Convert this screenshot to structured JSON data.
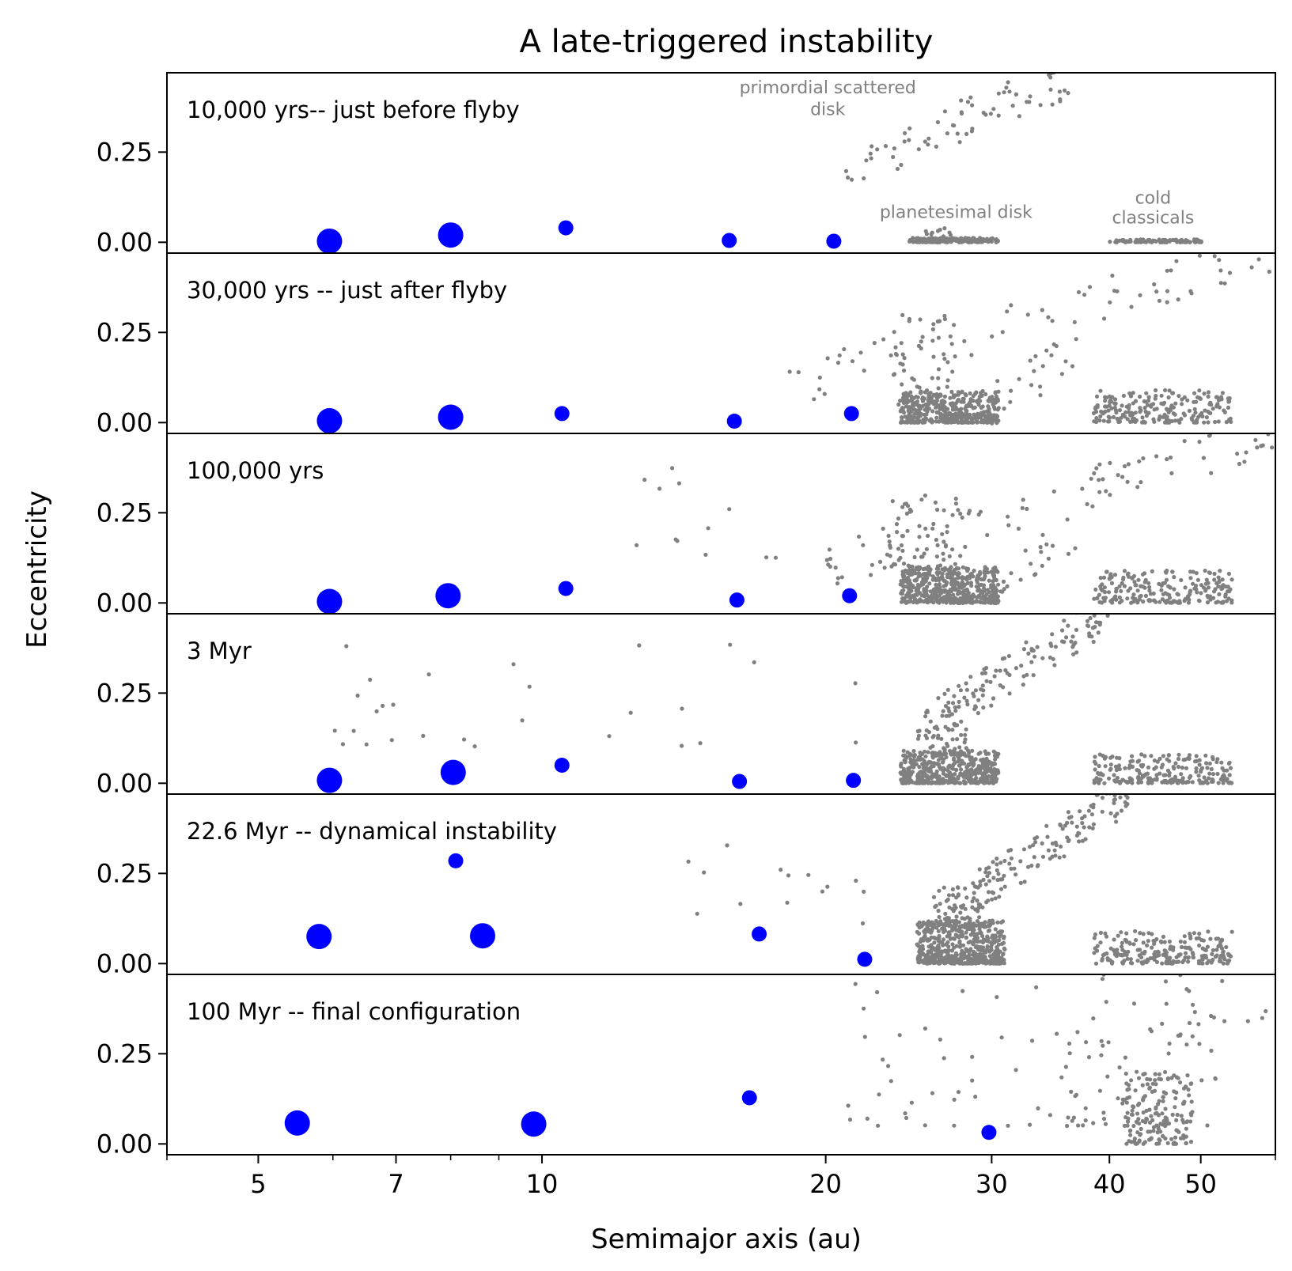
{
  "chart_data": {
    "type": "scatter",
    "title": "A late-triggered instability",
    "xlabel": "Semimajor axis (au)",
    "ylabel": "Eccentricity",
    "xscale": "log",
    "xlim": [
      4,
      60
    ],
    "ylim": [
      -0.03,
      0.47
    ],
    "xticks_major": [
      {
        "value": 5,
        "label": "5"
      },
      {
        "value": 7,
        "label": "7"
      },
      {
        "value": 10,
        "label": "10"
      },
      {
        "value": 20,
        "label": "20"
      },
      {
        "value": 30,
        "label": "30"
      },
      {
        "value": 40,
        "label": "40"
      },
      {
        "value": 50,
        "label": "50"
      }
    ],
    "xticks_minor": [
      4,
      6,
      8,
      9,
      60
    ],
    "yticks": [
      {
        "value": 0.0,
        "label": "0.00"
      },
      {
        "value": 0.25,
        "label": "0.25"
      }
    ],
    "particle_color": "#808080",
    "planet_color": "#0000ff",
    "annotations": [
      {
        "text": "primordial scattered",
        "panel": 0,
        "x": 20.1,
        "y": 0.43
      },
      {
        "text": "disk",
        "panel": 0,
        "x": 20.1,
        "y": 0.37
      },
      {
        "text": "planetesimal disk",
        "panel": 0,
        "x": 27.5,
        "y": 0.085
      },
      {
        "text": "cold",
        "panel": 0,
        "x": 44.5,
        "y": 0.125
      },
      {
        "text": "classicals",
        "panel": 0,
        "x": 44.5,
        "y": 0.07
      }
    ],
    "panels": [
      {
        "label": "10,000 yrs-- just before flyby",
        "planets": [
          {
            "a": 5.95,
            "e": 0.003,
            "size": "large"
          },
          {
            "a": 8.0,
            "e": 0.02,
            "size": "large"
          },
          {
            "a": 10.6,
            "e": 0.04,
            "size": "small"
          },
          {
            "a": 15.8,
            "e": 0.005,
            "size": "small"
          },
          {
            "a": 20.4,
            "e": 0.003,
            "size": "small"
          }
        ],
        "particle_groups": [
          {
            "a": [
              24.5,
              30.5
            ],
            "e": [
              0.0,
              0.012
            ],
            "n": 170
          },
          {
            "a": [
              25.5,
              27.5
            ],
            "e": [
              0.0,
              0.04
            ],
            "n": 25
          },
          {
            "a": [
              40.0,
              50.5
            ],
            "e": [
              0.0,
              0.008
            ],
            "n": 95
          },
          {
            "a": [
              21.0,
              37.0
            ],
            "e": [
              0.2,
              0.47
            ],
            "n": 75,
            "trend": true
          }
        ]
      },
      {
        "label": "30,000 yrs -- just after flyby",
        "planets": [
          {
            "a": 5.95,
            "e": 0.005,
            "size": "large"
          },
          {
            "a": 8.0,
            "e": 0.015,
            "size": "large"
          },
          {
            "a": 10.5,
            "e": 0.025,
            "size": "small"
          },
          {
            "a": 16.0,
            "e": 0.004,
            "size": "small"
          },
          {
            "a": 21.3,
            "e": 0.025,
            "size": "small"
          }
        ],
        "particle_groups": [
          {
            "a": [
              24.0,
              30.5
            ],
            "e": [
              0.0,
              0.09
            ],
            "n": 420
          },
          {
            "a": [
              23.5,
              27.5
            ],
            "e": [
              0.05,
              0.3
            ],
            "n": 60
          },
          {
            "a": [
              38.5,
              54.0
            ],
            "e": [
              0.0,
              0.09
            ],
            "n": 210
          },
          {
            "a": [
              30.0,
              37.0
            ],
            "e": [
              0.05,
              0.2
            ],
            "n": 25,
            "trend": true
          },
          {
            "a": [
              18.0,
              60.0
            ],
            "e": [
              0.1,
              0.47
            ],
            "n": 70,
            "trend": true
          }
        ]
      },
      {
        "label": "100,000 yrs",
        "planets": [
          {
            "a": 5.95,
            "e": 0.004,
            "size": "large"
          },
          {
            "a": 7.95,
            "e": 0.02,
            "size": "large"
          },
          {
            "a": 10.6,
            "e": 0.04,
            "size": "small"
          },
          {
            "a": 16.1,
            "e": 0.008,
            "size": "small"
          },
          {
            "a": 21.2,
            "e": 0.02,
            "size": "small"
          }
        ],
        "particle_groups": [
          {
            "a": [
              24.0,
              30.5
            ],
            "e": [
              0.0,
              0.1
            ],
            "n": 480
          },
          {
            "a": [
              23.0,
              28.0
            ],
            "e": [
              0.1,
              0.3
            ],
            "n": 60
          },
          {
            "a": [
              38.5,
              54.0
            ],
            "e": [
              0.0,
              0.09
            ],
            "n": 210
          },
          {
            "a": [
              12.5,
              20.0
            ],
            "e": [
              0.1,
              0.4
            ],
            "n": 12
          },
          {
            "a": [
              30.0,
              37.0
            ],
            "e": [
              0.05,
              0.2
            ],
            "n": 25,
            "trend": true
          },
          {
            "a": [
              20.0,
              60.0
            ],
            "e": [
              0.1,
              0.47
            ],
            "n": 90,
            "trend": true
          }
        ]
      },
      {
        "label": "3 Myr",
        "planets": [
          {
            "a": 5.95,
            "e": 0.008,
            "size": "large"
          },
          {
            "a": 8.05,
            "e": 0.03,
            "size": "large"
          },
          {
            "a": 10.5,
            "e": 0.05,
            "size": "small"
          },
          {
            "a": 16.2,
            "e": 0.005,
            "size": "small"
          },
          {
            "a": 21.4,
            "e": 0.008,
            "size": "small"
          }
        ],
        "particle_groups": [
          {
            "a": [
              24.0,
              30.5
            ],
            "e": [
              0.0,
              0.09
            ],
            "n": 460
          },
          {
            "a": [
              25.5,
              28.5
            ],
            "e": [
              0.08,
              0.2
            ],
            "n": 50
          },
          {
            "a": [
              38.5,
              54.0
            ],
            "e": [
              0.0,
              0.08
            ],
            "n": 220
          },
          {
            "a": [
              6.0,
              22.0
            ],
            "e": [
              0.1,
              0.4
            ],
            "n": 28
          },
          {
            "a": [
              25.0,
              40.0
            ],
            "e": [
              0.15,
              0.47
            ],
            "n": 130,
            "trend": true
          }
        ]
      },
      {
        "label": "22.6 Myr -- dynamical instability",
        "planets": [
          {
            "a": 5.8,
            "e": 0.075,
            "size": "large"
          },
          {
            "a": 8.65,
            "e": 0.077,
            "size": "large"
          },
          {
            "a": 8.1,
            "e": 0.285,
            "size": "small"
          },
          {
            "a": 17.0,
            "e": 0.082,
            "size": "small"
          },
          {
            "a": 22.0,
            "e": 0.012,
            "size": "small"
          }
        ],
        "particle_groups": [
          {
            "a": [
              25.0,
              31.0
            ],
            "e": [
              0.0,
              0.12
            ],
            "n": 520
          },
          {
            "a": [
              26.0,
              29.5
            ],
            "e": [
              0.1,
              0.22
            ],
            "n": 70
          },
          {
            "a": [
              38.5,
              54.0
            ],
            "e": [
              0.0,
              0.09
            ],
            "n": 220
          },
          {
            "a": [
              13.5,
              22.0
            ],
            "e": [
              0.1,
              0.35
            ],
            "n": 14
          },
          {
            "a": [
              27.0,
              42.0
            ],
            "e": [
              0.15,
              0.47
            ],
            "n": 150,
            "trend": true
          }
        ]
      },
      {
        "label": "100 Myr -- final configuration",
        "planets": [
          {
            "a": 5.5,
            "e": 0.058,
            "size": "large"
          },
          {
            "a": 9.8,
            "e": 0.055,
            "size": "large"
          },
          {
            "a": 16.6,
            "e": 0.128,
            "size": "small"
          },
          {
            "a": 29.8,
            "e": 0.032,
            "size": "small"
          }
        ],
        "particle_groups": [
          {
            "a": [
              41.5,
              49.0
            ],
            "e": [
              0.0,
              0.2
            ],
            "n": 170
          },
          {
            "a": [
              36.0,
              52.0
            ],
            "e": [
              0.05,
              0.4
            ],
            "n": 60
          },
          {
            "a": [
              21.0,
              40.0
            ],
            "e": [
              0.05,
              0.47
            ],
            "n": 50
          },
          {
            "a": [
              44.0,
              60.0
            ],
            "e": [
              0.3,
              0.47
            ],
            "n": 14
          }
        ]
      }
    ]
  }
}
